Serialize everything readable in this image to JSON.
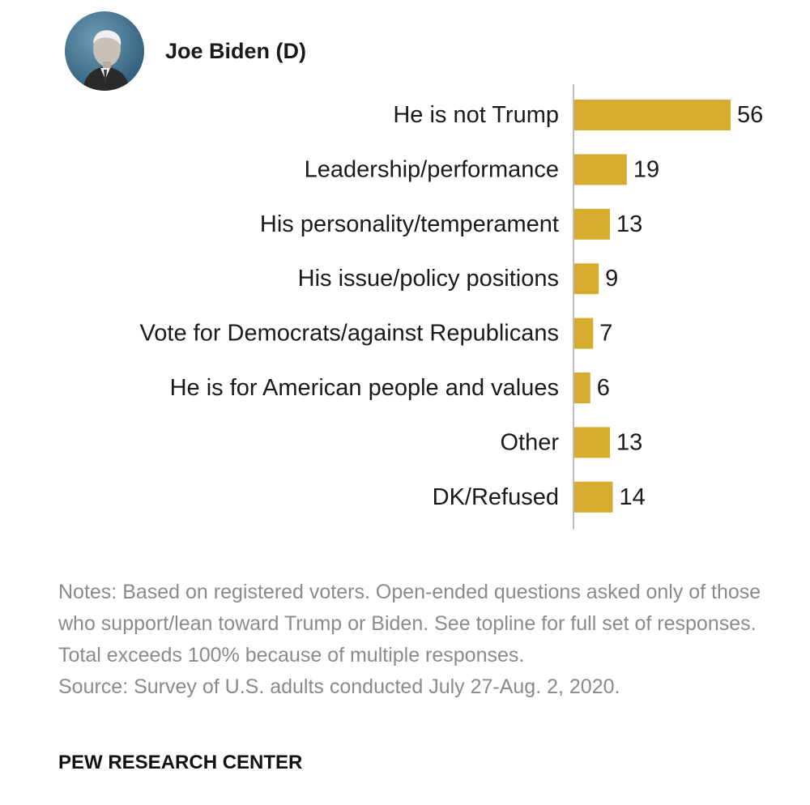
{
  "header": {
    "name": "Joe Biden (D)",
    "photo_icon": "candidate-portrait-icon"
  },
  "chart_data": {
    "type": "bar",
    "orientation": "horizontal",
    "title": "Joe Biden (D)",
    "categories": [
      "He is not Trump",
      "Leadership/performance",
      "His personality/temperament",
      "His issue/policy positions",
      "Vote for Democrats/against Republicans",
      "He is for American people and values",
      "Other",
      "DK/Refused"
    ],
    "values": [
      56,
      19,
      13,
      9,
      7,
      6,
      13,
      14
    ],
    "xlim": [
      0,
      56
    ],
    "grid": false,
    "bar_color": "#D6AC2F",
    "axis_color": "#bdbdbd"
  },
  "footer": {
    "notes": "Notes: Based on registered voters. Open-ended questions asked only of those who support/lean toward Trump or Biden. See topline for full set of responses. Total exceeds 100% because of multiple responses.",
    "source": "Source: Survey of U.S. adults conducted July 27-Aug. 2, 2020.",
    "credit": "PEW RESEARCH CENTER"
  }
}
